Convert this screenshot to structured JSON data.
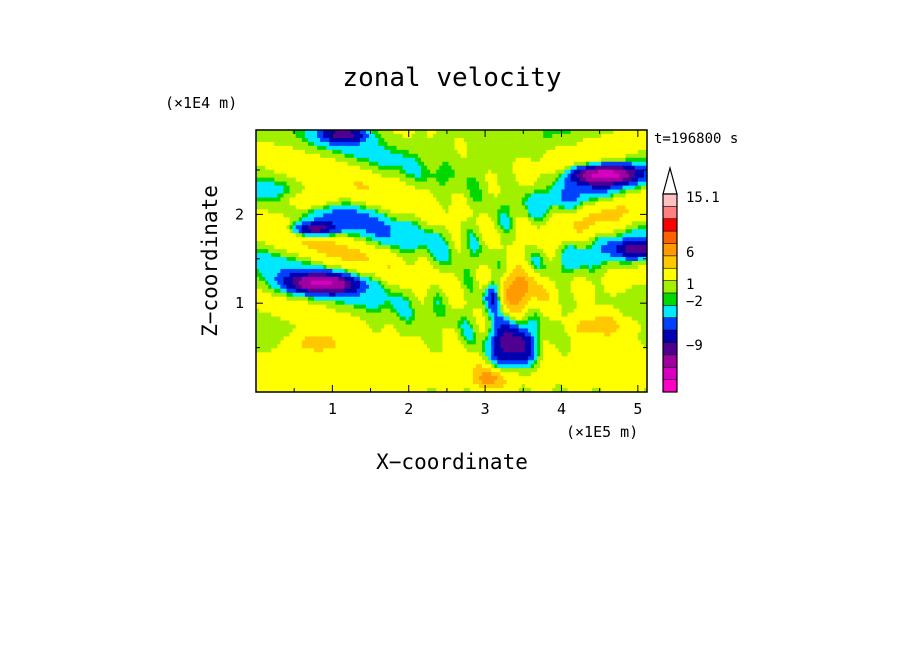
{
  "chart_data": {
    "type": "heatmap",
    "title": "zonal velocity",
    "xlabel": "X−coordinate",
    "ylabel": "Z−coordinate",
    "x_unit": "(×1E5 m)",
    "y_unit": "(×1E4 m)",
    "time_label": "t=196800 s",
    "xlim": [
      0,
      5.12
    ],
    "ylim": [
      0,
      2.95
    ],
    "x_ticks": [
      "1",
      "2",
      "3",
      "4",
      "5"
    ],
    "y_ticks": [
      "1",
      "2"
    ],
    "colorbar": {
      "labels": [
        "15.1",
        "6",
        "1",
        "−2",
        "−9"
      ],
      "colors": [
        "#ffc0c0",
        "#ff8080",
        "#ff0000",
        "#ff6000",
        "#ff9a00",
        "#ffc800",
        "#ffff00",
        "#a0f000",
        "#00d800",
        "#00e8ff",
        "#0040ff",
        "#0000b0",
        "#500090",
        "#a000a0",
        "#d800c0",
        "#ff00c8"
      ],
      "extend": "max"
    }
  }
}
